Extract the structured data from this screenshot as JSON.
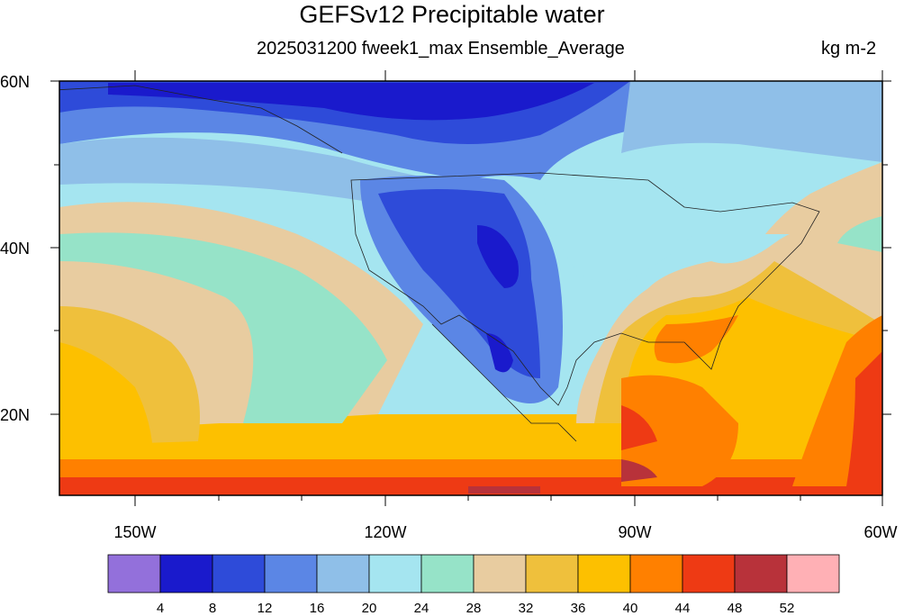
{
  "title": "GEFSv12 Precipitable water",
  "subtitle": "2025031200 fweek1_max Ensemble_Average",
  "units": "kg m-2",
  "lat_labels": [
    "60N",
    "40N",
    "20N"
  ],
  "lon_labels": [
    "150W",
    "120W",
    "90W",
    "60W"
  ],
  "colorbar": {
    "colors": [
      "#9370db",
      "#1a1acc",
      "#2e4bd9",
      "#5b86e5",
      "#8fbfe8",
      "#a5e5f0",
      "#96e3c8",
      "#e8ccA0",
      "#efc03c",
      "#fdc000",
      "#ff8000",
      "#ee3a14",
      "#b8323a",
      "#ffb0b5"
    ],
    "labels": [
      "4",
      "8",
      "12",
      "16",
      "20",
      "24",
      "28",
      "32",
      "36",
      "40",
      "44",
      "48",
      "52"
    ]
  }
}
